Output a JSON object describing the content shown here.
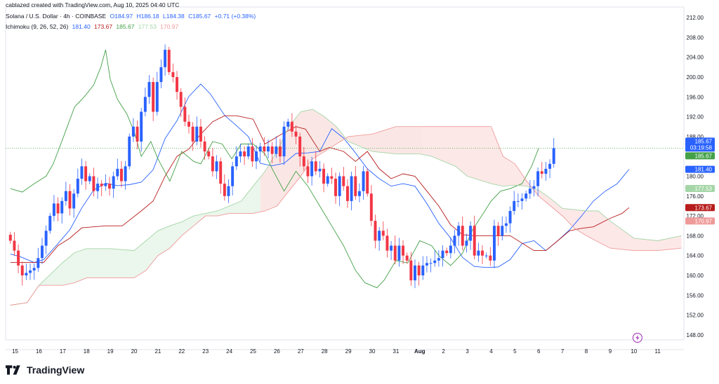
{
  "attribution": "cablazed created with TradingView.com, Aug 10, 2025 04:40 UTC",
  "legend": {
    "symbol": "Solana / U.S. Dollar · 4h · COINBASE",
    "open": "O184.97",
    "high": "H186.18",
    "low": "L184.38",
    "close": "C185.67",
    "change": "+0.71 (+0.38%)",
    "indicator": "Ichimoku (9, 26, 52, 26)",
    "ichimoku_values": [
      "181.40",
      "173.67",
      "185.67",
      "177.53",
      "170.97"
    ]
  },
  "brand": "TradingView",
  "colors": {
    "up": "#2962ff",
    "down": "#f23645",
    "conversion": "#2962ff",
    "base": "#b71c1c",
    "lagging": "#43a047",
    "lead1": "#a5d6a7",
    "lead2": "#ef9a9a",
    "cloud_bull": "#e8f5e9",
    "cloud_bear": "#fde4e4"
  },
  "chart_data": {
    "type": "candlestick",
    "title": "Solana / U.S. Dollar · 4h · COINBASE",
    "ylim": [
      147,
      213
    ],
    "y_ticks": [
      "212.00",
      "208.00",
      "204.00",
      "200.00",
      "196.00",
      "192.00",
      "188.00",
      "184.00",
      "180.00",
      "176.00",
      "172.00",
      "168.00",
      "164.00",
      "160.00",
      "156.00",
      "152.00",
      "148.00"
    ],
    "x_ticks": [
      "15",
      "16",
      "17",
      "18",
      "19",
      "20",
      "21",
      "22",
      "23",
      "24",
      "25",
      "26",
      "27",
      "28",
      "29",
      "30",
      "31",
      "Aug",
      "2",
      "3",
      "4",
      "5",
      "6",
      "7",
      "8",
      "9",
      "10",
      "11"
    ],
    "x_tick_days": [
      15,
      16,
      17,
      18,
      19,
      20,
      21,
      22,
      23,
      24,
      25,
      26,
      27,
      28,
      29,
      30,
      31,
      32,
      33,
      34,
      35,
      36,
      37,
      38,
      39,
      40,
      41,
      42
    ],
    "x_start_day": 14.8,
    "candles_per_day": 6,
    "candles_close": [
      167,
      165,
      162,
      160,
      160.5,
      161,
      161.5,
      163.5,
      166,
      169,
      172,
      174.5,
      172.5,
      175,
      177,
      173.5,
      176.5,
      179.5,
      182,
      179,
      180,
      177,
      178.5,
      178,
      178.5,
      177.5,
      180,
      181.5,
      179,
      182,
      188,
      190,
      187,
      193,
      196,
      199,
      193,
      199,
      202,
      205.5,
      201,
      200,
      197,
      194,
      191,
      190,
      187,
      190,
      187,
      185,
      184,
      181,
      183,
      178.5,
      176,
      178,
      182,
      184,
      185,
      184,
      186,
      183,
      185,
      186,
      185,
      186,
      184.5,
      186,
      184,
      190,
      191,
      189,
      188,
      184,
      182,
      180,
      183,
      181,
      181.5,
      178.5,
      180,
      179.5,
      176,
      180,
      178,
      175,
      180,
      176,
      177,
      181,
      176.5,
      171,
      167,
      169,
      168,
      165,
      166,
      163,
      166,
      164,
      163,
      159,
      162,
      160,
      162,
      162.5,
      162.5,
      163,
      163.5,
      165,
      164.5,
      166,
      168,
      170,
      166,
      167,
      170,
      164,
      165,
      164,
      164,
      163,
      170,
      168,
      170,
      170.5,
      173,
      175,
      175,
      175.5,
      176.5,
      177.5,
      178,
      181,
      180.5,
      181.5,
      182.5,
      185.67
    ],
    "series": [
      {
        "name": "Conversion Line (9)",
        "last": 181.4,
        "points": [
          [
            14.8,
            164.3
          ],
          [
            15.2,
            163.8
          ],
          [
            15.8,
            162.6
          ],
          [
            16.2,
            163.2
          ],
          [
            16.8,
            166.4
          ],
          [
            17.3,
            169.2
          ],
          [
            17.8,
            173.6
          ],
          [
            18.3,
            177.2
          ],
          [
            18.8,
            178.6
          ],
          [
            19.3,
            178.1
          ],
          [
            19.8,
            178.3
          ],
          [
            20.3,
            178.8
          ],
          [
            20.8,
            181.3
          ],
          [
            21.3,
            187.6
          ],
          [
            21.8,
            191.2
          ],
          [
            22.3,
            196.1
          ],
          [
            22.8,
            198.6
          ],
          [
            23.2,
            196.6
          ],
          [
            23.8,
            192.3
          ],
          [
            24.3,
            190.2
          ],
          [
            24.8,
            188.0
          ],
          [
            25.3,
            182.6
          ],
          [
            25.8,
            182.1
          ],
          [
            26.3,
            182.6
          ],
          [
            26.8,
            184.6
          ],
          [
            27.3,
            184.7
          ],
          [
            27.8,
            185.0
          ],
          [
            28.3,
            189.6
          ],
          [
            28.8,
            187.7
          ],
          [
            29.3,
            184.7
          ],
          [
            29.8,
            181.5
          ],
          [
            30.3,
            179.5
          ],
          [
            30.8,
            178.0
          ],
          [
            31.3,
            178.5
          ],
          [
            31.8,
            178.0
          ],
          [
            32.3,
            174.5
          ],
          [
            32.8,
            170.5
          ],
          [
            33.3,
            167.5
          ],
          [
            33.8,
            163.6
          ],
          [
            34.3,
            161.8
          ],
          [
            34.8,
            161.6
          ],
          [
            35.3,
            161.7
          ],
          [
            35.8,
            163.2
          ],
          [
            36.3,
            166.4
          ],
          [
            36.8,
            167.0
          ],
          [
            37.3,
            165.0
          ],
          [
            37.8,
            167.0
          ],
          [
            38.3,
            169.2
          ],
          [
            38.8,
            172.0
          ],
          [
            39.3,
            175.0
          ],
          [
            39.8,
            177.0
          ],
          [
            40.3,
            178.5
          ],
          [
            40.8,
            181.4
          ]
        ]
      },
      {
        "name": "Base Line (26)",
        "last": 173.67,
        "points": [
          [
            14.8,
            162.6
          ],
          [
            16.2,
            162.6
          ],
          [
            16.8,
            166.0
          ],
          [
            17.3,
            167.5
          ],
          [
            17.8,
            169.6
          ],
          [
            18.8,
            170.0
          ],
          [
            19.5,
            170.0
          ],
          [
            20.3,
            173.0
          ],
          [
            20.8,
            175.0
          ],
          [
            21.3,
            180.0
          ],
          [
            21.8,
            184.0
          ],
          [
            22.3,
            185.5
          ],
          [
            22.8,
            188.5
          ],
          [
            23.3,
            191.0
          ],
          [
            23.8,
            192.2
          ],
          [
            24.3,
            192.2
          ],
          [
            25.0,
            191.5
          ],
          [
            25.5,
            186.5
          ],
          [
            26.2,
            188.5
          ],
          [
            26.8,
            190.0
          ],
          [
            27.2,
            189.5
          ],
          [
            27.8,
            185.0
          ],
          [
            28.2,
            185.8
          ],
          [
            28.8,
            185.0
          ],
          [
            29.3,
            183.0
          ],
          [
            29.8,
            185.0
          ],
          [
            30.3,
            181.5
          ],
          [
            30.8,
            179.5
          ],
          [
            31.3,
            180.5
          ],
          [
            31.8,
            180.0
          ],
          [
            32.3,
            177.0
          ],
          [
            32.8,
            174.0
          ],
          [
            33.3,
            170.2
          ],
          [
            33.8,
            168.2
          ],
          [
            34.3,
            168.0
          ],
          [
            35.8,
            168.0
          ],
          [
            36.3,
            166.5
          ],
          [
            36.8,
            165.0
          ],
          [
            37.3,
            165.0
          ],
          [
            37.8,
            167.0
          ],
          [
            38.3,
            169.0
          ],
          [
            38.8,
            169.5
          ],
          [
            39.3,
            169.8
          ],
          [
            40.0,
            171.5
          ],
          [
            40.5,
            172.5
          ],
          [
            40.8,
            173.67
          ]
        ]
      },
      {
        "name": "Lagging Span (26)",
        "last": 185.67,
        "points": [
          [
            14.8,
            177.5
          ],
          [
            15.3,
            176.8
          ],
          [
            15.8,
            178.5
          ],
          [
            16.3,
            180.0
          ],
          [
            16.6,
            182.5
          ],
          [
            16.8,
            185.0
          ],
          [
            17.1,
            188.8
          ],
          [
            17.5,
            194.0
          ],
          [
            17.9,
            196.0
          ],
          [
            18.3,
            198.4
          ],
          [
            18.6,
            202.0
          ],
          [
            18.8,
            205.5
          ],
          [
            19.0,
            199.5
          ],
          [
            19.3,
            195.5
          ],
          [
            19.7,
            192.5
          ],
          [
            20.0,
            189.0
          ],
          [
            20.3,
            184.0
          ],
          [
            20.7,
            187.0
          ],
          [
            21.0,
            183.5
          ],
          [
            21.5,
            179.0
          ],
          [
            22.0,
            185.0
          ],
          [
            22.5,
            183.0
          ],
          [
            22.8,
            182.5
          ],
          [
            23.3,
            187.0
          ],
          [
            23.7,
            186.5
          ],
          [
            24.1,
            183.5
          ],
          [
            24.5,
            186.5
          ],
          [
            25.0,
            186.5
          ],
          [
            25.5,
            184.5
          ],
          [
            25.8,
            181.5
          ],
          [
            26.3,
            177.0
          ],
          [
            26.8,
            181.0
          ],
          [
            27.3,
            178.0
          ],
          [
            27.8,
            174.0
          ],
          [
            28.3,
            170.0
          ],
          [
            28.8,
            166.0
          ],
          [
            29.3,
            161.0
          ],
          [
            29.7,
            158.5
          ],
          [
            30.2,
            157.5
          ],
          [
            30.5,
            159.0
          ],
          [
            31.0,
            163.0
          ],
          [
            31.5,
            162.5
          ],
          [
            32.0,
            167.0
          ],
          [
            32.5,
            166.0
          ],
          [
            32.8,
            164.0
          ],
          [
            33.3,
            162.0
          ],
          [
            33.8,
            164.5
          ],
          [
            34.2,
            169.0
          ],
          [
            34.6,
            172.0
          ],
          [
            35.0,
            175.0
          ],
          [
            35.4,
            177.0
          ],
          [
            35.8,
            177.5
          ],
          [
            36.3,
            178.5
          ],
          [
            36.7,
            182.0
          ],
          [
            37.0,
            185.67
          ]
        ]
      },
      {
        "name": "Leading Span A",
        "last": 177.53,
        "points": [
          [
            14.8,
            154.0
          ],
          [
            15.5,
            154.5
          ],
          [
            16.0,
            158.0
          ],
          [
            16.5,
            160.3
          ],
          [
            17.0,
            162.6
          ],
          [
            17.5,
            164.6
          ],
          [
            18.0,
            165.4
          ],
          [
            19.0,
            165.4
          ],
          [
            20.0,
            165.0
          ],
          [
            20.5,
            167.0
          ],
          [
            21.0,
            169.0
          ],
          [
            21.5,
            170.0
          ],
          [
            22.0,
            170.8
          ],
          [
            22.5,
            172.0
          ],
          [
            23.0,
            172.5
          ],
          [
            23.5,
            173.0
          ],
          [
            24.0,
            174.0
          ],
          [
            24.5,
            175.0
          ],
          [
            25.0,
            178.0
          ],
          [
            25.5,
            181.0
          ],
          [
            26.0,
            185.0
          ],
          [
            26.5,
            190.0
          ],
          [
            27.0,
            193.0
          ],
          [
            27.5,
            193.5
          ],
          [
            28.0,
            192.0
          ],
          [
            28.5,
            190.0
          ],
          [
            29.0,
            187.0
          ],
          [
            29.5,
            186.0
          ],
          [
            30.0,
            185.0
          ],
          [
            31.0,
            184.5
          ],
          [
            32.0,
            184.5
          ],
          [
            32.5,
            184.0
          ],
          [
            33.0,
            183.0
          ],
          [
            33.5,
            182.0
          ],
          [
            34.0,
            180.0
          ],
          [
            35.0,
            178.5
          ],
          [
            35.5,
            178.0
          ],
          [
            36.0,
            178.2
          ],
          [
            36.5,
            178.0
          ],
          [
            37.0,
            177.2
          ],
          [
            37.5,
            175.5
          ],
          [
            38.0,
            173.5
          ],
          [
            39.0,
            173.0
          ],
          [
            39.5,
            173.0
          ],
          [
            40.0,
            171.0
          ],
          [
            41.0,
            167.5
          ],
          [
            42.0,
            167.0
          ],
          [
            43.0,
            168.0
          ]
        ]
      },
      {
        "name": "Leading Span B",
        "last": 170.97,
        "points": [
          [
            14.8,
            154.0
          ],
          [
            15.5,
            154.5
          ],
          [
            16.0,
            158.0
          ],
          [
            17.0,
            158.0
          ],
          [
            17.5,
            158.5
          ],
          [
            18.0,
            159.5
          ],
          [
            19.0,
            159.5
          ],
          [
            20.0,
            159.5
          ],
          [
            20.5,
            161.0
          ],
          [
            21.0,
            164.0
          ],
          [
            21.5,
            165.5
          ],
          [
            22.0,
            168.0
          ],
          [
            22.5,
            170.0
          ],
          [
            23.0,
            172.0
          ],
          [
            23.5,
            172.0
          ],
          [
            24.0,
            172.5
          ],
          [
            25.0,
            172.5
          ],
          [
            25.5,
            173.0
          ],
          [
            26.0,
            174.0
          ],
          [
            26.5,
            177.0
          ],
          [
            27.0,
            180.0
          ],
          [
            27.5,
            183.5
          ],
          [
            28.0,
            185.0
          ],
          [
            28.5,
            186.5
          ],
          [
            29.0,
            188.0
          ],
          [
            30.0,
            188.5
          ],
          [
            31.0,
            190.0
          ],
          [
            32.0,
            190.0
          ],
          [
            33.0,
            190.0
          ],
          [
            34.0,
            190.0
          ],
          [
            35.0,
            190.0
          ],
          [
            35.5,
            184.0
          ],
          [
            36.0,
            182.5
          ],
          [
            36.5,
            179.0
          ],
          [
            37.0,
            176.0
          ],
          [
            37.5,
            174.0
          ],
          [
            38.0,
            172.0
          ],
          [
            38.5,
            169.5
          ],
          [
            39.0,
            168.0
          ],
          [
            40.0,
            165.5
          ],
          [
            41.0,
            165.0
          ],
          [
            42.0,
            165.0
          ],
          [
            43.0,
            165.5
          ]
        ]
      }
    ],
    "cloud_crossover_day": 25.3,
    "price_tags": [
      {
        "value": 185.67,
        "label": "185.67",
        "sub": "03:19:58",
        "color": "#2962ff"
      },
      {
        "value": 185.67,
        "label": "185.67",
        "color": "#43a047",
        "offset": 1
      },
      {
        "value": 181.4,
        "label": "181.40",
        "color": "#2962ff"
      },
      {
        "value": 177.53,
        "label": "177.53",
        "color": "#a5d6a7"
      },
      {
        "value": 173.67,
        "label": "173.67",
        "color": "#b71c1c"
      },
      {
        "value": 170.97,
        "label": "170.97",
        "color": "#ef9a9a"
      }
    ]
  }
}
